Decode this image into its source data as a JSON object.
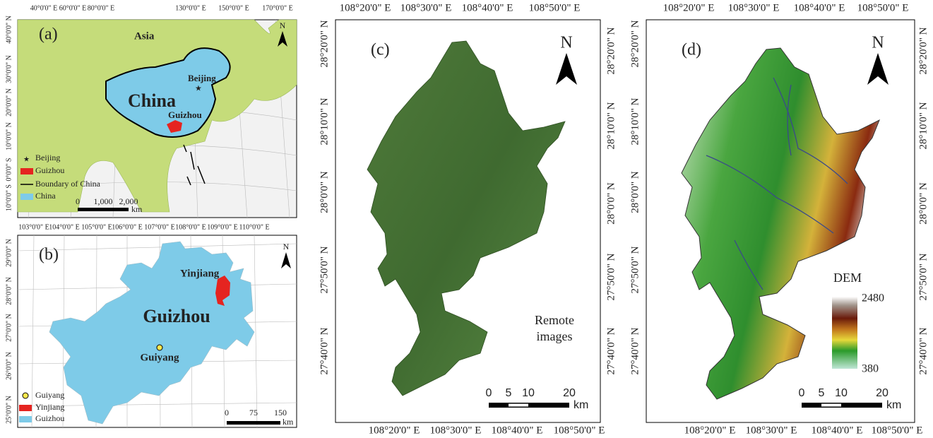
{
  "panels": {
    "a": {
      "letter": "(a)",
      "asia": "Asia",
      "china": "China",
      "beijing": "Beijing",
      "guizhou": "Guizhou",
      "lon_labels": [
        "40°0'0\" E",
        "60°0'0\" E",
        "80°0'0\" E",
        "130°0'0\" E",
        "150°0'0\" E",
        "170°0'0\" E"
      ],
      "lat_labels": [
        "40°0'0\" N",
        "30°0'0\" N",
        "20°0'0\" N",
        "10°0'0\" N",
        "0°0'0\" S",
        "10°0'0\" S"
      ],
      "legend": [
        "Beijing",
        "Guizhou",
        "Boundary of China",
        "China"
      ],
      "north": "N",
      "scale": [
        "0",
        "1,000",
        "2,000",
        "km"
      ]
    },
    "b": {
      "letter": "(b)",
      "yinjiang": "Yinjiang",
      "guizhou": "Guizhou",
      "guiyang": "Guiyang",
      "lon_labels": [
        "103°0'0\" E",
        "104°0'0\" E",
        "105°0'0\" E",
        "106°0'0\" E",
        "107°0'0\" E",
        "108°0'0\" E",
        "109°0'0\" E",
        "110°0'0\" E"
      ],
      "lat_labels": [
        "29°0'0\" N",
        "28°0'0\" N",
        "27°0'0\" N",
        "26°0'0\" N",
        "25°0'0\" N"
      ],
      "legend": [
        "Guiyang",
        "Yinjiang",
        "Guizhou"
      ],
      "north": "N",
      "scale": [
        "0",
        "75",
        "150",
        "km"
      ]
    },
    "c": {
      "letter": "(c)",
      "north": "N",
      "caption": [
        "Remote",
        "images"
      ],
      "top_labels": [
        "108°20'0\" E",
        "108°30'0\" E",
        "108°40'0\" E",
        "108°50'0\" E"
      ],
      "bottom_labels": [
        "108°20'0\" E",
        "108°30'0\" E",
        "108°40'0\" E",
        "108°50'0\" E"
      ],
      "left_labels": [
        "28°20'0\" N",
        "28°10'0\" N",
        "28°0'0\" N",
        "27°50'0\" N",
        "27°40'0\" N"
      ],
      "right_labels": [
        "28°20'0\" N",
        "28°10'0\" N",
        "28°0'0\" N",
        "27°50'0\" N",
        "27°40'0\" N"
      ],
      "scale": [
        "0",
        "5",
        "10",
        "20",
        "km"
      ]
    },
    "d": {
      "letter": "(d)",
      "north": "N",
      "dem_title": "DEM",
      "dem_max": "2480",
      "dem_min": "380",
      "top_labels": [
        "108°20'0\" E",
        "108°30'0\" E",
        "108°40'0\" E",
        "108°50'0\" E"
      ],
      "bottom_labels": [
        "108°20'0\" E",
        "108°30'0\" E",
        "108°40'0\" E",
        "108°50'0\" E"
      ],
      "left_labels": [
        "28°20'0\" N",
        "28°10'0\" N",
        "28°0'0\" N",
        "27°50'0\" N",
        "27°40'0\" N"
      ],
      "right_labels": [
        "28°20'0\" N",
        "28°10'0\" N",
        "28°0'0\" N",
        "27°50'0\" N",
        "27°40'0\" N"
      ],
      "scale": [
        "0",
        "5",
        "10",
        "20",
        "km"
      ]
    }
  }
}
